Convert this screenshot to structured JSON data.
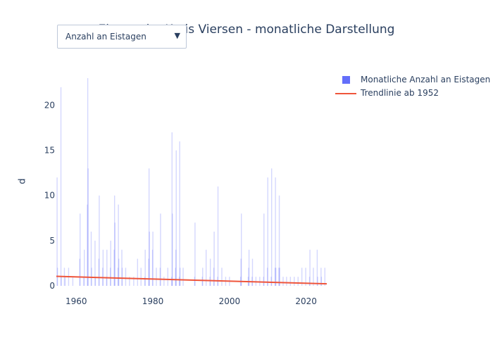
{
  "chart_data": {
    "type": "bar",
    "title": "Eistage im Kreis Viersen - monatliche Darstellung",
    "ylabel": "d",
    "xlabel": "",
    "xlim": [
      1954.8,
      2025.4
    ],
    "ylim": [
      0,
      23
    ],
    "x_ticks": [
      1960,
      1980,
      2000,
      2020
    ],
    "y_ticks": [
      0,
      5,
      10,
      15,
      20
    ],
    "grid": false,
    "legend_position": "top-right",
    "series": [
      {
        "name": "Monatliche Anzahl an Eistagen",
        "type": "bar",
        "color": "#636efa",
        "x": [
          1955.0,
          1955.1,
          1956.0,
          1956.1,
          1956.9,
          1957.1,
          1958.0,
          1959.1,
          1960.9,
          1961.0,
          1961.9,
          1962.1,
          1962.9,
          1963.0,
          1963.1,
          1963.9,
          1964.0,
          1964.9,
          1965.0,
          1965.9,
          1966.0,
          1966.9,
          1967.0,
          1967.9,
          1968.0,
          1968.9,
          1969.0,
          1969.9,
          1970.0,
          1970.1,
          1970.9,
          1971.0,
          1971.1,
          1971.9,
          1972.0,
          1972.9,
          1973.9,
          1975.0,
          1976.0,
          1976.9,
          1977.9,
          1978.0,
          1978.9,
          1979.0,
          1979.1,
          1979.9,
          1980.0,
          1980.9,
          1981.9,
          1982.0,
          1982.9,
          1983.9,
          1984.9,
          1985.0,
          1985.1,
          1985.9,
          1986.0,
          1986.1,
          1986.9,
          1987.0,
          1987.1,
          1987.9,
          1990.9,
          1991.0,
          1992.9,
          1993.0,
          1993.9,
          1994.9,
          1995.0,
          1995.9,
          1996.0,
          1996.9,
          1997.0,
          1998.0,
          1999.0,
          2000.0,
          2002.9,
          2003.0,
          2003.1,
          2004.9,
          2005.0,
          2005.1,
          2005.9,
          2006.0,
          2006.9,
          2007.9,
          2008.9,
          2009.0,
          2009.9,
          2010.0,
          2010.9,
          2011.0,
          2011.9,
          2012.0,
          2012.1,
          2012.9,
          2013.0,
          2013.1,
          2014.0,
          2014.9,
          2015.9,
          2016.9,
          2017.9,
          2018.9,
          2019.9,
          2020.9,
          2021.0,
          2021.9,
          2022.9,
          2023.0,
          2023.9,
          2024.0,
          2024.9
        ],
        "values": [
          12,
          2,
          22,
          1,
          2,
          1,
          2,
          1,
          3,
          8,
          1,
          4,
          9,
          23,
          13,
          6,
          2,
          5,
          1,
          3,
          10,
          2,
          4,
          1,
          4,
          2,
          5,
          4,
          10,
          7,
          2,
          9,
          3,
          4,
          2,
          2,
          1,
          1,
          3,
          2,
          1,
          4,
          3,
          13,
          6,
          4,
          6,
          2,
          2,
          8,
          1,
          2,
          1,
          17,
          8,
          2,
          4,
          15,
          1,
          16,
          2,
          2,
          1,
          7,
          1,
          2,
          4,
          1,
          3,
          2,
          6,
          1,
          11,
          2,
          1,
          1,
          1,
          3,
          8,
          1,
          2,
          4,
          1,
          3,
          1,
          1,
          1,
          8,
          2,
          12,
          1,
          13,
          2,
          12,
          2,
          2,
          10,
          2,
          1,
          1,
          1,
          1,
          1,
          2,
          2,
          1,
          4,
          2,
          4,
          1,
          2,
          1,
          2
        ]
      },
      {
        "name": "Trendlinie ab 1952",
        "type": "line",
        "color": "#ef553b",
        "x": [
          1954.8,
          2025.4
        ],
        "values": [
          1.05,
          0.22
        ]
      }
    ]
  },
  "dropdown": {
    "selected": "Anzahl an Eistagen"
  }
}
